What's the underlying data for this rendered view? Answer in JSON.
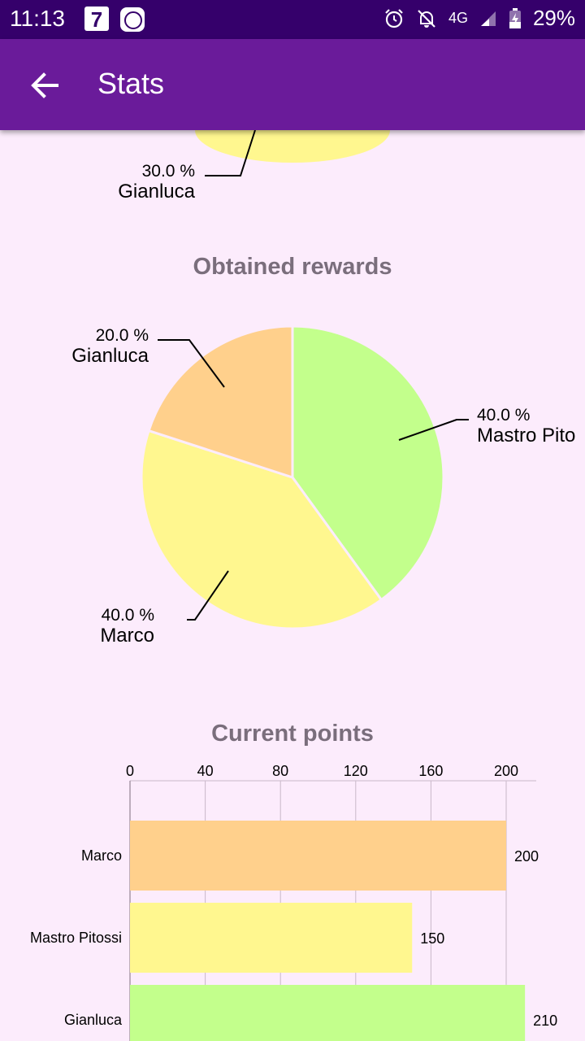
{
  "status_bar": {
    "time": "11:13",
    "calendar_day": "7",
    "network": "4G",
    "battery": "29%"
  },
  "app_bar": {
    "title": "Stats"
  },
  "top_chart_partial": {
    "label_percent": "30.0 %",
    "label_name": "Gianluca",
    "color": "#fff78f"
  },
  "chart_data": [
    {
      "type": "pie",
      "title": "Obtained rewards",
      "slices": [
        {
          "name": "Mastro Pito",
          "value": 40.0,
          "label": "40.0 %",
          "color": "#c3ff8c"
        },
        {
          "name": "Marco",
          "value": 40.0,
          "label": "40.0 %",
          "color": "#fff78f"
        },
        {
          "name": "Gianluca",
          "value": 20.0,
          "label": "20.0 %",
          "color": "#ffd08c"
        }
      ]
    },
    {
      "type": "bar",
      "orientation": "horizontal",
      "title": "Current points",
      "categories": [
        "Marco",
        "Mastro Pitossi",
        "Gianluca"
      ],
      "values": [
        200,
        150,
        210
      ],
      "value_labels": [
        "200",
        "150",
        "210"
      ],
      "colors": [
        "#ffd08c",
        "#fff78f",
        "#c3ff8c"
      ],
      "xlim": [
        0,
        216
      ],
      "x_ticks": [
        "0",
        "40",
        "80",
        "120",
        "160",
        "200"
      ],
      "grid": true
    }
  ]
}
